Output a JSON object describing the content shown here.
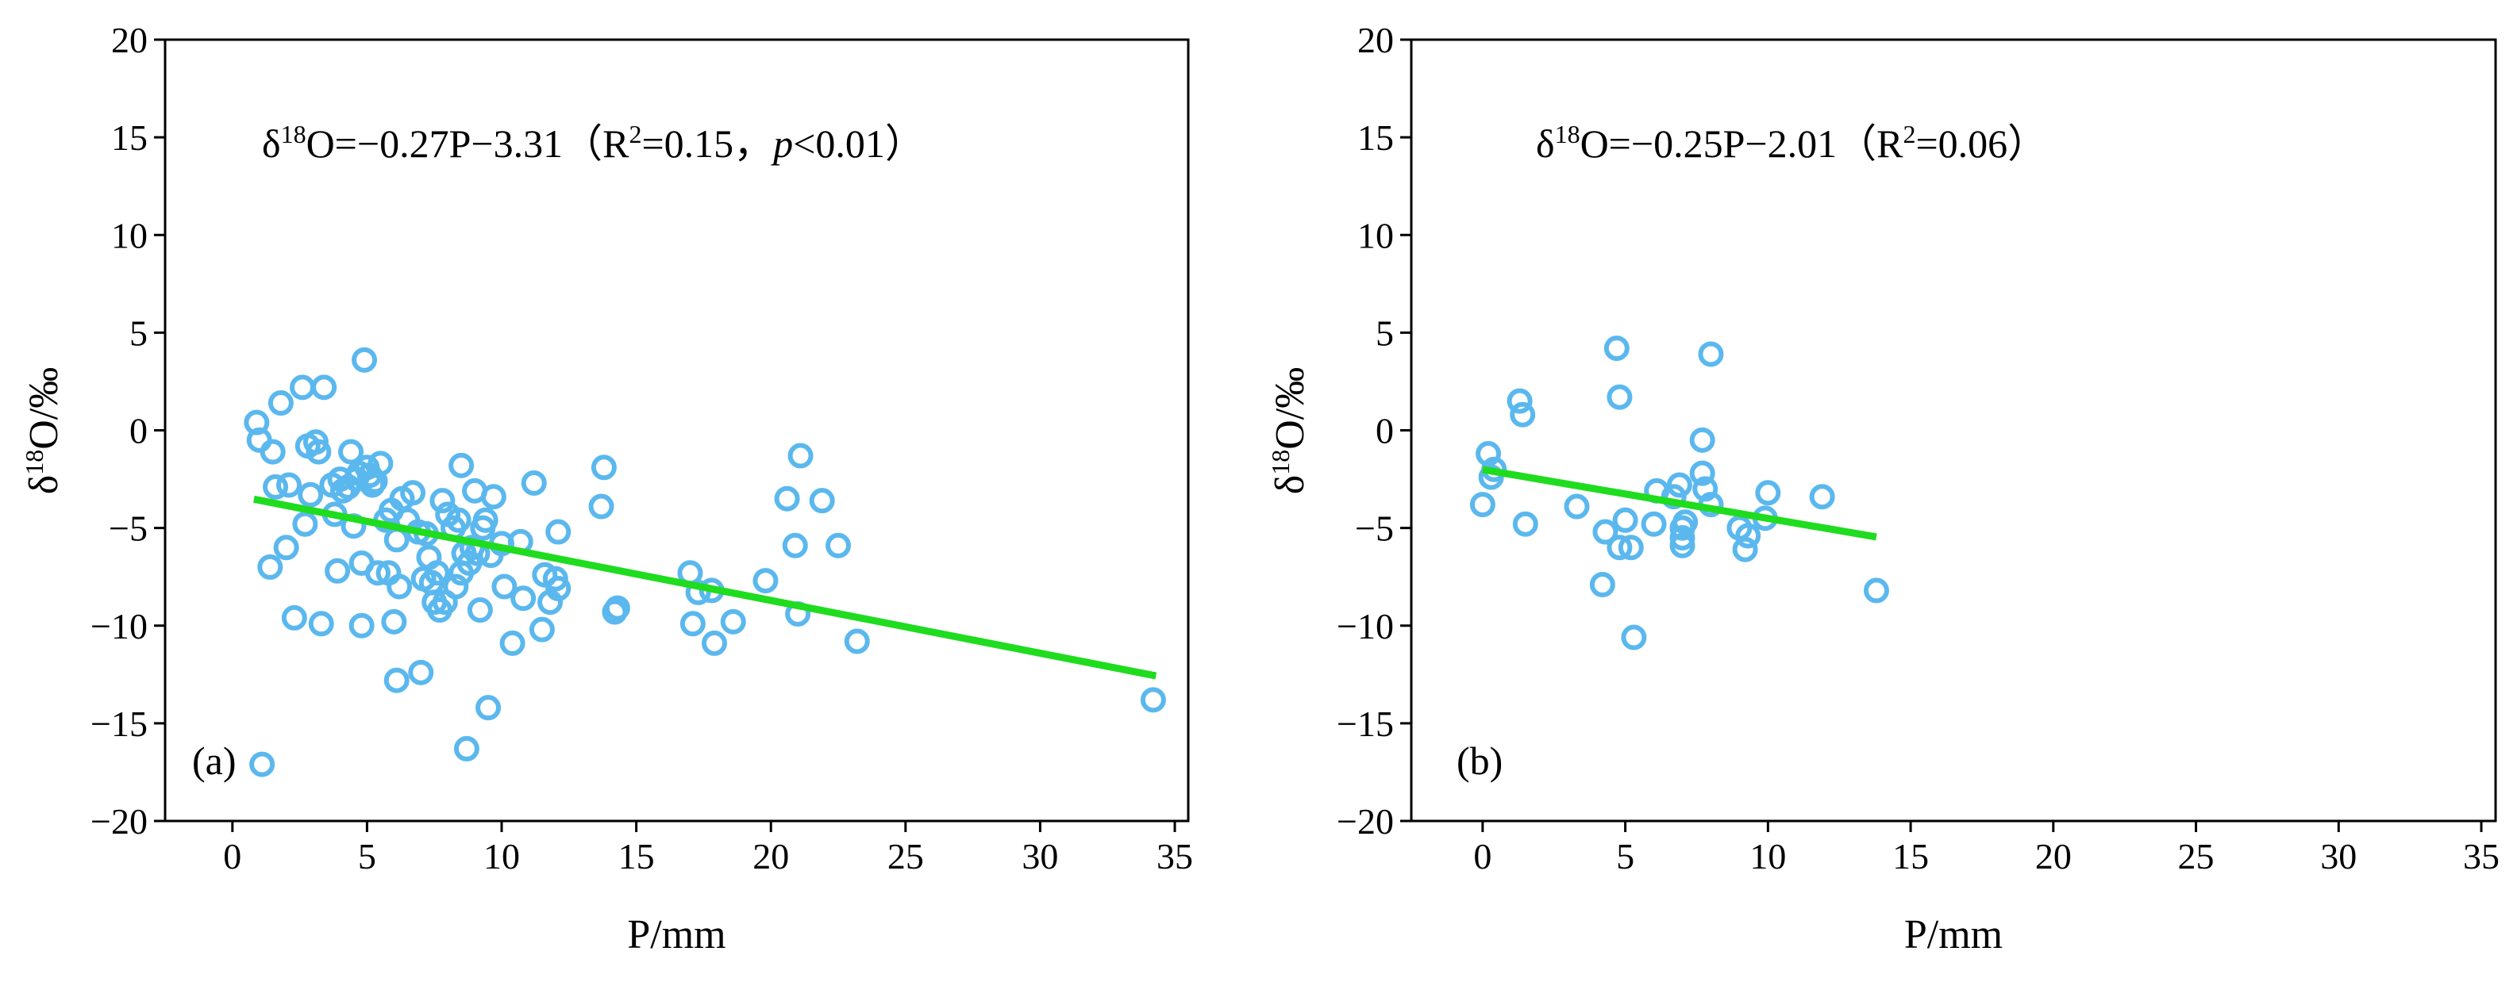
{
  "chart_data": [
    {
      "panel": "a",
      "type": "scatter",
      "panel_label": "(a)",
      "equation": {
        "lhs": "δ",
        "sup": "18",
        "rhs": "O=−0.27P−3.31（R",
        "r2sup": "2",
        "r2": "=0.15，",
        "p_italic": "p",
        "tail": "<0.01）"
      },
      "xlabel": "P/mm",
      "ylabel": {
        "pre": "δ",
        "sup": "18",
        "post": "O/‰"
      },
      "xlim": [
        -2.5,
        35.5
      ],
      "ylim": [
        -20,
        20
      ],
      "x_ticks": [
        0,
        5,
        10,
        15,
        20,
        25,
        30,
        35
      ],
      "y_ticks": [
        -20,
        -15,
        -10,
        -5,
        0,
        5,
        10,
        15,
        20
      ],
      "x_tick_labels": [
        "0",
        "5",
        "10",
        "15",
        "20",
        "25",
        "30",
        "35"
      ],
      "y_tick_labels": [
        "−20",
        "−15",
        "−10",
        "−5",
        "0",
        "5",
        "10",
        "15",
        "20"
      ],
      "marker_color": "#5bb8ee",
      "fit": {
        "slope": -0.27,
        "intercept": -3.31,
        "x_range": [
          0.8,
          34.3
        ],
        "color": "#1fdc1f"
      },
      "points": [
        [
          0.9,
          0.4
        ],
        [
          1.0,
          -0.5
        ],
        [
          1.1,
          -17.1
        ],
        [
          1.4,
          -7.0
        ],
        [
          1.5,
          -1.1
        ],
        [
          1.6,
          -2.9
        ],
        [
          1.8,
          1.4
        ],
        [
          2.0,
          -6.0
        ],
        [
          2.1,
          -2.8
        ],
        [
          2.3,
          -9.6
        ],
        [
          2.6,
          2.2
        ],
        [
          2.7,
          -4.8
        ],
        [
          2.8,
          -0.8
        ],
        [
          2.9,
          -3.3
        ],
        [
          3.1,
          -0.6
        ],
        [
          3.2,
          -1.1
        ],
        [
          3.3,
          -9.9
        ],
        [
          3.4,
          2.2
        ],
        [
          3.7,
          -2.8
        ],
        [
          3.8,
          -4.3
        ],
        [
          3.9,
          -7.2
        ],
        [
          4.0,
          -2.5
        ],
        [
          4.1,
          -3.1
        ],
        [
          4.3,
          -2.9
        ],
        [
          4.4,
          -1.1
        ],
        [
          4.5,
          -4.9
        ],
        [
          4.6,
          -2.5
        ],
        [
          4.7,
          -2.2
        ],
        [
          4.8,
          -6.8
        ],
        [
          4.8,
          -10.0
        ],
        [
          4.9,
          3.6
        ],
        [
          5.0,
          -1.9
        ],
        [
          5.1,
          -2.3
        ],
        [
          5.2,
          -2.8
        ],
        [
          5.3,
          -2.6
        ],
        [
          5.4,
          -7.3
        ],
        [
          5.5,
          -1.7
        ],
        [
          5.7,
          -4.6
        ],
        [
          5.8,
          -7.3
        ],
        [
          5.9,
          -4.1
        ],
        [
          6.0,
          -9.8
        ],
        [
          6.1,
          -5.6
        ],
        [
          6.1,
          -12.8
        ],
        [
          6.2,
          -8.0
        ],
        [
          6.3,
          -3.5
        ],
        [
          6.5,
          -4.6
        ],
        [
          6.7,
          -3.2
        ],
        [
          6.9,
          -5.2
        ],
        [
          7.0,
          -12.4
        ],
        [
          7.1,
          -7.6
        ],
        [
          7.2,
          -5.3
        ],
        [
          7.3,
          -6.5
        ],
        [
          7.4,
          -7.8
        ],
        [
          7.5,
          -8.8
        ],
        [
          7.6,
          -7.3
        ],
        [
          7.7,
          -9.2
        ],
        [
          7.8,
          -3.6
        ],
        [
          7.9,
          -8.8
        ],
        [
          8.0,
          -4.3
        ],
        [
          8.2,
          -5.0
        ],
        [
          8.3,
          -8.0
        ],
        [
          8.4,
          -4.6
        ],
        [
          8.5,
          -1.8
        ],
        [
          8.5,
          -7.3
        ],
        [
          8.6,
          -6.3
        ],
        [
          8.7,
          -16.3
        ],
        [
          8.8,
          -6.8
        ],
        [
          8.9,
          -6.0
        ],
        [
          9.0,
          -3.1
        ],
        [
          9.1,
          -6.3
        ],
        [
          9.2,
          -9.2
        ],
        [
          9.3,
          -5.0
        ],
        [
          9.4,
          -4.6
        ],
        [
          9.5,
          -14.2
        ],
        [
          9.6,
          -6.4
        ],
        [
          9.7,
          -3.4
        ],
        [
          10.0,
          -5.8
        ],
        [
          10.1,
          -8.0
        ],
        [
          10.4,
          -10.9
        ],
        [
          10.7,
          -5.7
        ],
        [
          10.8,
          -8.6
        ],
        [
          11.2,
          -2.7
        ],
        [
          11.5,
          -10.2
        ],
        [
          11.6,
          -7.4
        ],
        [
          11.8,
          -8.8
        ],
        [
          12.0,
          -7.6
        ],
        [
          12.1,
          -8.1
        ],
        [
          12.1,
          -5.2
        ],
        [
          13.7,
          -3.9
        ],
        [
          13.8,
          -1.9
        ],
        [
          14.2,
          -9.3
        ],
        [
          14.3,
          -9.1
        ],
        [
          17.0,
          -7.3
        ],
        [
          17.1,
          -9.9
        ],
        [
          17.3,
          -8.3
        ],
        [
          17.8,
          -8.2
        ],
        [
          17.9,
          -10.9
        ],
        [
          18.6,
          -9.8
        ],
        [
          19.8,
          -7.7
        ],
        [
          20.6,
          -3.5
        ],
        [
          20.9,
          -5.9
        ],
        [
          21.0,
          -9.4
        ],
        [
          21.1,
          -1.3
        ],
        [
          21.9,
          -3.6
        ],
        [
          22.5,
          -5.9
        ],
        [
          23.2,
          -10.8
        ],
        [
          34.2,
          -13.8
        ]
      ]
    },
    {
      "panel": "b",
      "type": "scatter",
      "panel_label": "(b)",
      "equation": {
        "lhs": "δ",
        "sup": "18",
        "rhs": "O=−0.25P−2.01（R",
        "r2sup": "2",
        "r2": "=0.06）"
      },
      "xlabel": "P/mm",
      "ylabel": {
        "pre": "δ",
        "sup": "18",
        "post": "O/‰"
      },
      "xlim": [
        -2.5,
        35.5
      ],
      "ylim": [
        -20,
        20
      ],
      "x_ticks": [
        0,
        5,
        10,
        15,
        20,
        25,
        30,
        35
      ],
      "y_ticks": [
        -20,
        -15,
        -10,
        -5,
        0,
        5,
        10,
        15,
        20
      ],
      "x_tick_labels": [
        "0",
        "5",
        "10",
        "15",
        "20",
        "25",
        "30",
        "35"
      ],
      "y_tick_labels": [
        "−20",
        "−15",
        "−10",
        "−5",
        "0",
        "5",
        "10",
        "15",
        "20"
      ],
      "marker_color": "#5bb8ee",
      "fit": {
        "slope": -0.25,
        "intercept": -2.01,
        "x_range": [
          0.0,
          13.8
        ],
        "color": "#1fdc1f"
      },
      "points": [
        [
          0.0,
          -3.8
        ],
        [
          0.2,
          -1.2
        ],
        [
          0.3,
          -2.4
        ],
        [
          0.4,
          -2.0
        ],
        [
          1.3,
          1.5
        ],
        [
          1.4,
          0.8
        ],
        [
          1.5,
          -4.8
        ],
        [
          3.3,
          -3.9
        ],
        [
          4.2,
          -7.9
        ],
        [
          4.3,
          -5.2
        ],
        [
          4.7,
          4.2
        ],
        [
          4.8,
          1.7
        ],
        [
          4.8,
          -6.0
        ],
        [
          5.0,
          -4.6
        ],
        [
          5.2,
          -6.0
        ],
        [
          5.3,
          -10.6
        ],
        [
          6.0,
          -4.8
        ],
        [
          6.1,
          -3.1
        ],
        [
          6.7,
          -3.4
        ],
        [
          6.9,
          -2.8
        ],
        [
          7.0,
          -5.0
        ],
        [
          7.0,
          -5.5
        ],
        [
          7.0,
          -5.9
        ],
        [
          7.1,
          -4.7
        ],
        [
          7.7,
          -0.5
        ],
        [
          7.7,
          -2.2
        ],
        [
          7.8,
          -3.0
        ],
        [
          8.0,
          -3.8
        ],
        [
          8.0,
          3.9
        ],
        [
          9.0,
          -5.0
        ],
        [
          9.2,
          -6.1
        ],
        [
          9.3,
          -5.4
        ],
        [
          9.9,
          -4.5
        ],
        [
          10.0,
          -3.2
        ],
        [
          11.9,
          -3.4
        ],
        [
          13.8,
          -8.2
        ]
      ]
    }
  ]
}
